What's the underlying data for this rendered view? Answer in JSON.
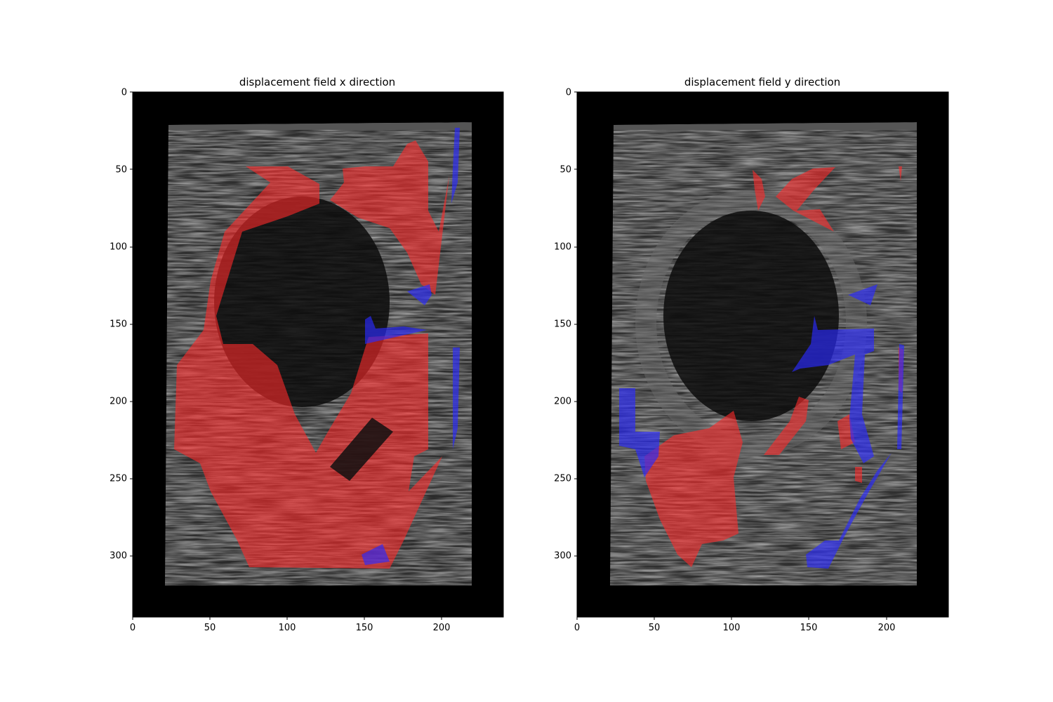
{
  "panels": [
    {
      "title": "displacement field x direction",
      "xticks": [
        "0",
        "50",
        "100",
        "150",
        "200"
      ],
      "yticks": [
        "0",
        "50",
        "100",
        "150",
        "200",
        "250",
        "300"
      ]
    },
    {
      "title": "displacement field y direction",
      "xticks": [
        "0",
        "50",
        "100",
        "150",
        "200"
      ],
      "yticks": [
        "0",
        "50",
        "100",
        "150",
        "200",
        "250",
        "300"
      ]
    }
  ],
  "colors": {
    "background": "#000000",
    "overlay_positive": "#d02020",
    "overlay_negative": "#2020e0",
    "ultrasound": "#3a3a3a"
  }
}
